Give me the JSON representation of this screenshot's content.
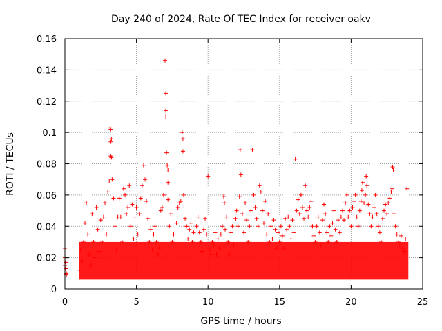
{
  "chart_data": {
    "type": "scatter",
    "title": "Day 240 of 2024, Rate Of TEC Index for receiver oakv",
    "xlabel": "GPS time / hours",
    "ylabel": "ROTI / TECUs",
    "xlim": [
      0,
      25
    ],
    "ylim": [
      0,
      0.16
    ],
    "x_ticks": [
      "0",
      "5",
      "10",
      "15",
      "20",
      "25"
    ],
    "y_ticks": [
      "0",
      "0.02",
      "0.04",
      "0.06",
      "0.08",
      "0.1",
      "0.12",
      "0.14",
      "0.16"
    ],
    "grid": true,
    "marker": "plus",
    "color": "#ff0000",
    "series": [
      {
        "name": "ROTI",
        "points": [
          [
            0.0,
            0.026
          ],
          [
            0.0,
            0.02
          ],
          [
            0.05,
            0.017
          ],
          [
            0.05,
            0.013
          ],
          [
            0.1,
            0.01
          ],
          [
            0.1,
            0.009
          ],
          [
            0.0,
            0.015
          ],
          [
            1.0,
            0.012
          ],
          [
            1.1,
            0.025
          ],
          [
            1.2,
            0.018
          ],
          [
            1.3,
            0.03
          ],
          [
            1.4,
            0.042
          ],
          [
            1.5,
            0.055
          ],
          [
            1.6,
            0.035
          ],
          [
            1.7,
            0.022
          ],
          [
            1.8,
            0.015
          ],
          [
            1.9,
            0.048
          ],
          [
            2.0,
            0.03
          ],
          [
            2.1,
            0.02
          ],
          [
            2.2,
            0.052
          ],
          [
            2.3,
            0.038
          ],
          [
            2.4,
            0.024
          ],
          [
            2.5,
            0.044
          ],
          [
            2.6,
            0.03
          ],
          [
            2.7,
            0.046
          ],
          [
            2.8,
            0.055
          ],
          [
            2.9,
            0.035
          ],
          [
            3.0,
            0.062
          ],
          [
            3.1,
            0.069
          ],
          [
            3.15,
            0.103
          ],
          [
            3.2,
            0.102
          ],
          [
            3.25,
            0.096
          ],
          [
            3.2,
            0.094
          ],
          [
            3.2,
            0.085
          ],
          [
            3.25,
            0.084
          ],
          [
            3.3,
            0.07
          ],
          [
            3.4,
            0.058
          ],
          [
            3.5,
            0.04
          ],
          [
            3.6,
            0.025
          ],
          [
            3.7,
            0.046
          ],
          [
            3.8,
            0.058
          ],
          [
            3.9,
            0.046
          ],
          [
            4.0,
            0.03
          ],
          [
            4.1,
            0.064
          ],
          [
            4.2,
            0.06
          ],
          [
            4.3,
            0.048
          ],
          [
            4.4,
            0.052
          ],
          [
            4.5,
            0.066
          ],
          [
            4.6,
            0.04
          ],
          [
            4.7,
            0.054
          ],
          [
            4.8,
            0.032
          ],
          [
            4.9,
            0.046
          ],
          [
            5.0,
            0.052
          ],
          [
            5.1,
            0.035
          ],
          [
            5.2,
            0.048
          ],
          [
            5.3,
            0.058
          ],
          [
            5.4,
            0.066
          ],
          [
            5.5,
            0.079
          ],
          [
            5.6,
            0.07
          ],
          [
            5.7,
            0.056
          ],
          [
            5.8,
            0.045
          ],
          [
            5.9,
            0.03
          ],
          [
            6.0,
            0.038
          ],
          [
            6.1,
            0.025
          ],
          [
            6.2,
            0.035
          ],
          [
            6.3,
            0.04
          ],
          [
            6.4,
            0.03
          ],
          [
            6.5,
            0.022
          ],
          [
            6.6,
            0.026
          ],
          [
            6.7,
            0.05
          ],
          [
            6.8,
            0.052
          ],
          [
            6.9,
            0.06
          ],
          [
            7.0,
            0.146
          ],
          [
            7.05,
            0.125
          ],
          [
            7.05,
            0.114
          ],
          [
            7.05,
            0.11
          ],
          [
            7.1,
            0.087
          ],
          [
            7.15,
            0.079
          ],
          [
            7.2,
            0.076
          ],
          [
            7.2,
            0.068
          ],
          [
            7.2,
            0.057
          ],
          [
            7.3,
            0.04
          ],
          [
            7.4,
            0.048
          ],
          [
            7.5,
            0.03
          ],
          [
            7.6,
            0.035
          ],
          [
            7.7,
            0.025
          ],
          [
            7.8,
            0.042
          ],
          [
            7.9,
            0.052
          ],
          [
            8.0,
            0.055
          ],
          [
            8.1,
            0.056
          ],
          [
            8.2,
            0.1
          ],
          [
            8.25,
            0.096
          ],
          [
            8.25,
            0.088
          ],
          [
            8.3,
            0.06
          ],
          [
            8.4,
            0.045
          ],
          [
            8.5,
            0.04
          ],
          [
            8.6,
            0.032
          ],
          [
            8.7,
            0.038
          ],
          [
            8.8,
            0.042
          ],
          [
            8.9,
            0.03
          ],
          [
            9.0,
            0.036
          ],
          [
            9.1,
            0.028
          ],
          [
            9.2,
            0.04
          ],
          [
            9.3,
            0.046
          ],
          [
            9.4,
            0.036
          ],
          [
            9.5,
            0.03
          ],
          [
            9.6,
            0.024
          ],
          [
            9.7,
            0.038
          ],
          [
            9.8,
            0.045
          ],
          [
            9.9,
            0.035
          ],
          [
            10.0,
            0.072
          ],
          [
            10.1,
            0.025
          ],
          [
            10.2,
            0.022
          ],
          [
            10.3,
            0.03
          ],
          [
            10.4,
            0.028
          ],
          [
            10.5,
            0.036
          ],
          [
            10.6,
            0.022
          ],
          [
            10.7,
            0.032
          ],
          [
            10.8,
            0.026
          ],
          [
            10.9,
            0.035
          ],
          [
            11.0,
            0.04
          ],
          [
            11.1,
            0.059
          ],
          [
            11.15,
            0.055
          ],
          [
            11.2,
            0.038
          ],
          [
            11.3,
            0.046
          ],
          [
            11.4,
            0.03
          ],
          [
            11.5,
            0.022
          ],
          [
            11.6,
            0.036
          ],
          [
            11.7,
            0.04
          ],
          [
            11.8,
            0.028
          ],
          [
            11.9,
            0.045
          ],
          [
            12.0,
            0.05
          ],
          [
            12.1,
            0.04
          ],
          [
            12.2,
            0.059
          ],
          [
            12.25,
            0.089
          ],
          [
            12.3,
            0.073
          ],
          [
            12.4,
            0.048
          ],
          [
            12.5,
            0.036
          ],
          [
            12.6,
            0.055
          ],
          [
            12.7,
            0.044
          ],
          [
            12.8,
            0.03
          ],
          [
            12.9,
            0.04
          ],
          [
            13.0,
            0.05
          ],
          [
            13.1,
            0.089
          ],
          [
            13.2,
            0.06
          ],
          [
            13.3,
            0.052
          ],
          [
            13.4,
            0.045
          ],
          [
            13.5,
            0.04
          ],
          [
            13.6,
            0.066
          ],
          [
            13.7,
            0.062
          ],
          [
            13.8,
            0.05
          ],
          [
            13.9,
            0.042
          ],
          [
            14.0,
            0.056
          ],
          [
            14.1,
            0.035
          ],
          [
            14.2,
            0.048
          ],
          [
            14.3,
            0.03
          ],
          [
            14.4,
            0.04
          ],
          [
            14.5,
            0.032
          ],
          [
            14.6,
            0.044
          ],
          [
            14.7,
            0.038
          ],
          [
            14.8,
            0.026
          ],
          [
            14.9,
            0.036
          ],
          [
            15.0,
            0.03
          ],
          [
            15.1,
            0.04
          ],
          [
            15.2,
            0.034
          ],
          [
            15.3,
            0.026
          ],
          [
            15.4,
            0.045
          ],
          [
            15.5,
            0.038
          ],
          [
            15.6,
            0.046
          ],
          [
            15.7,
            0.04
          ],
          [
            15.8,
            0.032
          ],
          [
            15.9,
            0.044
          ],
          [
            16.0,
            0.036
          ],
          [
            16.1,
            0.083
          ],
          [
            16.2,
            0.05
          ],
          [
            16.3,
            0.057
          ],
          [
            16.4,
            0.048
          ],
          [
            16.5,
            0.06
          ],
          [
            16.6,
            0.052
          ],
          [
            16.7,
            0.045
          ],
          [
            16.8,
            0.066
          ],
          [
            16.9,
            0.05
          ],
          [
            17.0,
            0.046
          ],
          [
            17.1,
            0.052
          ],
          [
            17.2,
            0.056
          ],
          [
            17.3,
            0.04
          ],
          [
            17.4,
            0.034
          ],
          [
            17.5,
            0.03
          ],
          [
            17.6,
            0.04
          ],
          [
            17.7,
            0.046
          ],
          [
            17.8,
            0.036
          ],
          [
            17.9,
            0.028
          ],
          [
            18.0,
            0.044
          ],
          [
            18.1,
            0.054
          ],
          [
            18.2,
            0.048
          ],
          [
            18.3,
            0.036
          ],
          [
            18.4,
            0.03
          ],
          [
            18.5,
            0.04
          ],
          [
            18.6,
            0.034
          ],
          [
            18.7,
            0.042
          ],
          [
            18.8,
            0.05
          ],
          [
            18.9,
            0.038
          ],
          [
            19.0,
            0.03
          ],
          [
            19.1,
            0.044
          ],
          [
            19.2,
            0.036
          ],
          [
            19.3,
            0.046
          ],
          [
            19.4,
            0.05
          ],
          [
            19.5,
            0.044
          ],
          [
            19.6,
            0.055
          ],
          [
            19.7,
            0.06
          ],
          [
            19.8,
            0.046
          ],
          [
            19.9,
            0.05
          ],
          [
            20.0,
            0.04
          ],
          [
            20.1,
            0.052
          ],
          [
            20.2,
            0.056
          ],
          [
            20.3,
            0.06
          ],
          [
            20.4,
            0.046
          ],
          [
            20.5,
            0.04
          ],
          [
            20.6,
            0.05
          ],
          [
            20.7,
            0.056
          ],
          [
            20.75,
            0.063
          ],
          [
            20.8,
            0.068
          ],
          [
            20.9,
            0.055
          ],
          [
            21.0,
            0.06
          ],
          [
            21.05,
            0.072
          ],
          [
            21.1,
            0.066
          ],
          [
            21.2,
            0.054
          ],
          [
            21.3,
            0.048
          ],
          [
            21.4,
            0.04
          ],
          [
            21.5,
            0.046
          ],
          [
            21.6,
            0.052
          ],
          [
            21.7,
            0.06
          ],
          [
            21.8,
            0.048
          ],
          [
            21.9,
            0.04
          ],
          [
            22.0,
            0.036
          ],
          [
            22.1,
            0.03
          ],
          [
            22.2,
            0.045
          ],
          [
            22.3,
            0.05
          ],
          [
            22.4,
            0.054
          ],
          [
            22.5,
            0.048
          ],
          [
            22.6,
            0.055
          ],
          [
            22.7,
            0.058
          ],
          [
            22.8,
            0.062
          ],
          [
            22.85,
            0.064
          ],
          [
            22.9,
            0.078
          ],
          [
            22.95,
            0.076
          ],
          [
            23.0,
            0.048
          ],
          [
            23.1,
            0.04
          ],
          [
            23.2,
            0.035
          ],
          [
            23.3,
            0.03
          ],
          [
            23.4,
            0.028
          ],
          [
            23.5,
            0.034
          ],
          [
            23.6,
            0.026
          ],
          [
            23.7,
            0.024
          ],
          [
            23.8,
            0.032
          ],
          [
            23.9,
            0.064
          ]
        ]
      }
    ]
  }
}
